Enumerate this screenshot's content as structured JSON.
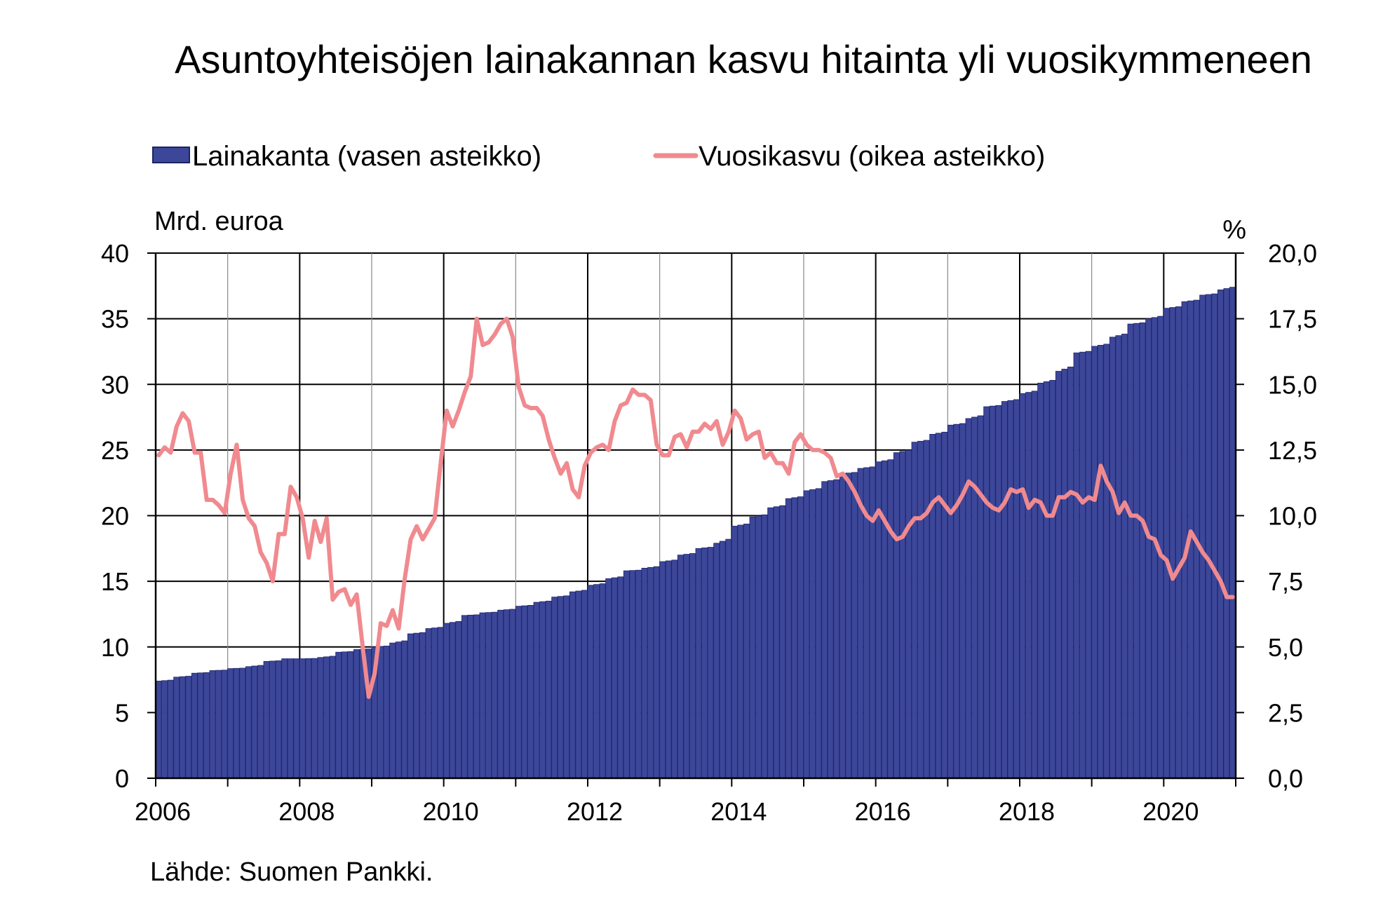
{
  "chart_data": {
    "type": "bar+line",
    "title": "Asuntoyhteisöjen lainakannan kasvu hitainta yli vuosikymmeneen",
    "source": "Lähde: Suomen Pankki.",
    "left_axis": {
      "unit": "Mrd. euroa",
      "ylim": [
        0,
        40
      ],
      "ticks": [
        "0",
        "5",
        "10",
        "15",
        "20",
        "25",
        "30",
        "35",
        "40"
      ]
    },
    "right_axis": {
      "unit": "%",
      "ylim": [
        0,
        20
      ],
      "ticks": [
        "0,0",
        "2,5",
        "5,0",
        "7,5",
        "10,0",
        "12,5",
        "15,0",
        "17,5",
        "20,0"
      ]
    },
    "x_axis": {
      "tick_labels": [
        "2006",
        "2008",
        "2010",
        "2012",
        "2014",
        "2016",
        "2018",
        "2020"
      ],
      "start": "2006-01",
      "end": "2020-12",
      "grid": "vertical lines at every year, darker at even years"
    },
    "legend": {
      "placement": "top"
    },
    "series": [
      {
        "name": "Lainakanta (vasen asteikko)",
        "type": "bar",
        "axis": "left",
        "color": "#3D4799",
        "quarterly_values": [
          [
            2006,
            1,
            7.4
          ],
          [
            2006,
            4,
            7.7
          ],
          [
            2006,
            7,
            8.0
          ],
          [
            2006,
            10,
            8.2
          ],
          [
            2007,
            1,
            8.35
          ],
          [
            2007,
            4,
            8.5
          ],
          [
            2007,
            7,
            8.9
          ],
          [
            2007,
            10,
            9.1
          ],
          [
            2008,
            1,
            9.1
          ],
          [
            2008,
            4,
            9.2
          ],
          [
            2008,
            7,
            9.6
          ],
          [
            2008,
            10,
            9.8
          ],
          [
            2009,
            1,
            10.0
          ],
          [
            2009,
            4,
            10.3
          ],
          [
            2009,
            7,
            11.0
          ],
          [
            2009,
            10,
            11.4
          ],
          [
            2010,
            1,
            11.8
          ],
          [
            2010,
            4,
            12.4
          ],
          [
            2010,
            7,
            12.6
          ],
          [
            2010,
            10,
            12.8
          ],
          [
            2011,
            1,
            13.1
          ],
          [
            2011,
            4,
            13.4
          ],
          [
            2011,
            7,
            13.8
          ],
          [
            2011,
            10,
            14.2
          ],
          [
            2012,
            1,
            14.7
          ],
          [
            2012,
            4,
            15.2
          ],
          [
            2012,
            7,
            15.8
          ],
          [
            2012,
            10,
            16.0
          ],
          [
            2013,
            1,
            16.5
          ],
          [
            2013,
            4,
            17.0
          ],
          [
            2013,
            7,
            17.5
          ],
          [
            2013,
            10,
            17.9
          ],
          [
            2014,
            1,
            19.2
          ],
          [
            2014,
            4,
            19.9
          ],
          [
            2014,
            7,
            20.6
          ],
          [
            2014,
            10,
            21.3
          ],
          [
            2015,
            1,
            21.9
          ],
          [
            2015,
            4,
            22.6
          ],
          [
            2015,
            7,
            23.2
          ],
          [
            2015,
            10,
            23.6
          ],
          [
            2016,
            1,
            24.1
          ],
          [
            2016,
            4,
            24.8
          ],
          [
            2016,
            7,
            25.6
          ],
          [
            2016,
            10,
            26.2
          ],
          [
            2017,
            1,
            26.9
          ],
          [
            2017,
            4,
            27.4
          ],
          [
            2017,
            7,
            28.3
          ],
          [
            2017,
            10,
            28.7
          ],
          [
            2018,
            1,
            29.3
          ],
          [
            2018,
            4,
            30.1
          ],
          [
            2018,
            7,
            31.0
          ],
          [
            2018,
            10,
            32.4
          ],
          [
            2019,
            1,
            32.9
          ],
          [
            2019,
            4,
            33.6
          ],
          [
            2019,
            7,
            34.6
          ],
          [
            2019,
            10,
            35.0
          ],
          [
            2020,
            1,
            35.8
          ],
          [
            2020,
            4,
            36.3
          ],
          [
            2020,
            7,
            36.8
          ],
          [
            2020,
            10,
            37.2
          ]
        ]
      },
      {
        "name": "Vuosikasvu (oikea asteikko)",
        "type": "line",
        "axis": "right",
        "color": "#F08A8F",
        "monthly_values": [
          12.3,
          12.6,
          12.4,
          13.4,
          13.9,
          13.6,
          12.4,
          12.4,
          10.6,
          10.6,
          10.4,
          10.1,
          11.6,
          12.7,
          10.6,
          9.9,
          9.6,
          8.6,
          8.2,
          7.5,
          9.3,
          9.3,
          11.1,
          10.7,
          9.9,
          8.4,
          9.8,
          9.0,
          9.9,
          6.8,
          7.1,
          7.2,
          6.6,
          7.0,
          5.0,
          3.1,
          4.0,
          5.9,
          5.8,
          6.4,
          5.7,
          7.6,
          9.1,
          9.6,
          9.1,
          9.5,
          9.9,
          12.0,
          14.0,
          13.4,
          14.0,
          14.7,
          15.3,
          17.5,
          16.5,
          16.6,
          16.9,
          17.3,
          17.5,
          16.8,
          14.9,
          14.2,
          14.1,
          14.1,
          13.8,
          12.9,
          12.2,
          11.6,
          12.0,
          11.0,
          10.7,
          11.9,
          12.4,
          12.6,
          12.7,
          12.5,
          13.6,
          14.2,
          14.3,
          14.8,
          14.6,
          14.6,
          14.4,
          12.7,
          12.3,
          12.3,
          13.0,
          13.1,
          12.6,
          13.2,
          13.2,
          13.5,
          13.3,
          13.6,
          12.7,
          13.2,
          14.0,
          13.7,
          12.9,
          13.1,
          13.2,
          12.2,
          12.4,
          12.0,
          12.0,
          11.6,
          12.8,
          13.1,
          12.7,
          12.5,
          12.5,
          12.4,
          12.2,
          11.5,
          11.6,
          11.3,
          10.9,
          10.4,
          10.0,
          9.8,
          10.2,
          9.8,
          9.4,
          9.1,
          9.2,
          9.6,
          9.9,
          9.9,
          10.1,
          10.5,
          10.7,
          10.4,
          10.1,
          10.4,
          10.8,
          11.3,
          11.1,
          10.8,
          10.5,
          10.3,
          10.2,
          10.5,
          11.0,
          10.9,
          11.0,
          10.3,
          10.6,
          10.5,
          10.0,
          10.0,
          10.7,
          10.7,
          10.9,
          10.8,
          10.5,
          10.7,
          10.6,
          11.9,
          11.3,
          10.9,
          10.1,
          10.5,
          10.0,
          10.0,
          9.8,
          9.2,
          9.1,
          8.5,
          8.3,
          7.6,
          8.0,
          8.4,
          9.4,
          9.0,
          8.6,
          8.3,
          7.9,
          7.5,
          6.9,
          6.9
        ]
      }
    ]
  }
}
